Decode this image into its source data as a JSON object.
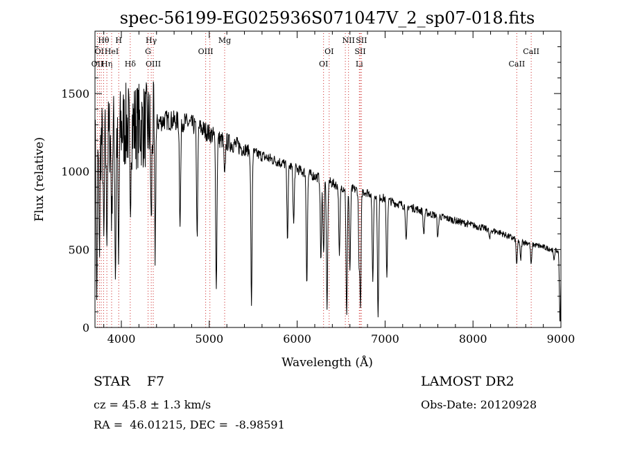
{
  "chart_data": {
    "type": "line",
    "title": "spec-56199-EG025936S071047V_2_sp07-018.fits",
    "xlabel": "Wavelength (Å)",
    "ylabel": "Flux (relative)",
    "xlim": [
      3700,
      9000
    ],
    "ylim": [
      0,
      1900
    ],
    "x_ticks": [
      4000,
      5000,
      6000,
      7000,
      8000,
      9000
    ],
    "y_ticks": [
      0,
      500,
      1000,
      1500
    ],
    "grid": false,
    "continuum": {
      "x": [
        3700,
        3900,
        4100,
        4300,
        4500,
        4700,
        4900,
        5100,
        5300,
        5500,
        5700,
        5900,
        6100,
        6300,
        6500,
        6700,
        6900,
        7100,
        7300,
        7500,
        7700,
        7900,
        8100,
        8300,
        8500,
        8700,
        8900,
        9000
      ],
      "y": [
        1150,
        1250,
        1300,
        1290,
        1330,
        1320,
        1280,
        1210,
        1170,
        1120,
        1080,
        1040,
        990,
        950,
        900,
        880,
        850,
        800,
        770,
        730,
        700,
        670,
        640,
        610,
        560,
        530,
        500,
        480
      ]
    },
    "absorption_features": [
      {
        "x": 3720,
        "depth": 0.85
      },
      {
        "x": 3750,
        "depth": 0.6
      },
      {
        "x": 3800,
        "depth": 0.55
      },
      {
        "x": 3835,
        "depth": 0.5
      },
      {
        "x": 3890,
        "depth": 0.45
      },
      {
        "x": 3933,
        "depth": 0.75
      },
      {
        "x": 3968,
        "depth": 0.7
      },
      {
        "x": 4101,
        "depth": 0.45
      },
      {
        "x": 4340,
        "depth": 0.5
      },
      {
        "x": 4384,
        "depth": 0.65
      },
      {
        "x": 4668,
        "depth": 0.5
      },
      {
        "x": 4862,
        "depth": 0.55
      },
      {
        "x": 5080,
        "depth": 0.8
      },
      {
        "x": 5175,
        "depth": 0.2
      },
      {
        "x": 5480,
        "depth": 0.88
      },
      {
        "x": 5890,
        "depth": 0.45
      },
      {
        "x": 5960,
        "depth": 0.35
      },
      {
        "x": 6110,
        "depth": 0.72
      },
      {
        "x": 6270,
        "depth": 0.55
      },
      {
        "x": 6300,
        "depth": 0.5
      },
      {
        "x": 6340,
        "depth": 0.88
      },
      {
        "x": 6480,
        "depth": 0.5
      },
      {
        "x": 6563,
        "depth": 0.92
      },
      {
        "x": 6600,
        "depth": 0.6
      },
      {
        "x": 6705,
        "depth": 0.55
      },
      {
        "x": 6720,
        "depth": 0.85
      },
      {
        "x": 6860,
        "depth": 0.65
      },
      {
        "x": 6920,
        "depth": 0.92
      },
      {
        "x": 7020,
        "depth": 0.6
      },
      {
        "x": 7240,
        "depth": 0.3
      },
      {
        "x": 7440,
        "depth": 0.2
      },
      {
        "x": 7600,
        "depth": 0.2
      },
      {
        "x": 8190,
        "depth": 0.1
      },
      {
        "x": 8498,
        "depth": 0.28
      },
      {
        "x": 8542,
        "depth": 0.22
      },
      {
        "x": 8662,
        "depth": 0.25
      },
      {
        "x": 8920,
        "depth": 0.12
      },
      {
        "x": 8990,
        "depth": 0.95
      }
    ],
    "line_markers": [
      {
        "x": 3727,
        "label": "OII",
        "row": 2,
        "anchor": "middle"
      },
      {
        "x": 3750,
        "label": "OI",
        "row": 1,
        "anchor": "middle"
      },
      {
        "x": 3771,
        "label": "Hη",
        "row": 2,
        "anchor": "start"
      },
      {
        "x": 3798,
        "label": "Hθ",
        "row": 0,
        "anchor": "middle"
      },
      {
        "x": 3835,
        "label": "",
        "row": 0,
        "anchor": "middle"
      },
      {
        "x": 3889,
        "label": "HeI",
        "row": 1,
        "anchor": "middle"
      },
      {
        "x": 3970,
        "label": "H",
        "row": 0,
        "anchor": "middle"
      },
      {
        "x": 4101,
        "label": "Hδ",
        "row": 2,
        "anchor": "middle"
      },
      {
        "x": 4304,
        "label": "G",
        "row": 1,
        "anchor": "middle"
      },
      {
        "x": 4340,
        "label": "Hγ",
        "row": 0,
        "anchor": "middle"
      },
      {
        "x": 4363,
        "label": "OIII",
        "row": 2,
        "anchor": "middle"
      },
      {
        "x": 4959,
        "label": "OIII",
        "row": 1,
        "anchor": "middle"
      },
      {
        "x": 5007,
        "label": "",
        "row": 1,
        "anchor": "middle"
      },
      {
        "x": 5175,
        "label": "Mg",
        "row": 0,
        "anchor": "middle"
      },
      {
        "x": 6300,
        "label": "OI",
        "row": 2,
        "anchor": "middle"
      },
      {
        "x": 6364,
        "label": "OI",
        "row": 1,
        "anchor": "middle"
      },
      {
        "x": 6548,
        "label": "",
        "row": 0,
        "anchor": "middle"
      },
      {
        "x": 6584,
        "label": "NII",
        "row": 0,
        "anchor": "middle"
      },
      {
        "x": 6707,
        "label": "Li",
        "row": 2,
        "anchor": "middle"
      },
      {
        "x": 6717,
        "label": "SII",
        "row": 1,
        "anchor": "middle"
      },
      {
        "x": 6731,
        "label": "SII",
        "row": 0,
        "anchor": "middle"
      },
      {
        "x": 8498,
        "label": "CaII",
        "row": 2,
        "anchor": "middle"
      },
      {
        "x": 8662,
        "label": "CaII",
        "row": 1,
        "anchor": "middle"
      }
    ]
  },
  "info": {
    "classification": "STAR    F7",
    "survey": "LAMOST DR2",
    "redshift": "cz = 45.8 ± 1.3 km/s",
    "obs_date": "Obs-Date: 20120928",
    "coordinates": "RA =  46.01215, DEC =  -8.98591"
  },
  "colors": {
    "spectrum": "#000000",
    "marker": "#cc2222",
    "axes": "#000000"
  }
}
